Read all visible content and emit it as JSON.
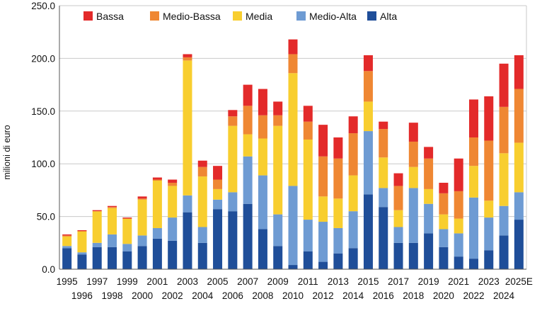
{
  "chart_data": {
    "type": "bar",
    "stacked": true,
    "title": "",
    "ylabel": "milioni di euro",
    "xlabel": "",
    "ylim": [
      0,
      250
    ],
    "yticks": [
      0,
      50,
      100,
      150,
      200,
      250
    ],
    "ytick_labels": [
      "0.0",
      "50.0",
      "100.0",
      "150.0",
      "200.0",
      "250.0"
    ],
    "grid": true,
    "legend_position": "top-left",
    "categories": [
      "1995",
      "1996",
      "1997",
      "1998",
      "1999",
      "2000",
      "2001",
      "2002",
      "2003",
      "2004",
      "2005",
      "2006",
      "2007",
      "2008",
      "2009",
      "2010",
      "2011",
      "2012",
      "2013",
      "2014",
      "2015",
      "2016",
      "2017",
      "2018",
      "2019",
      "2020",
      "2021",
      "2022",
      "2023",
      "2024",
      "2025E"
    ],
    "series": [
      {
        "name": "Alta",
        "color": "#1f4e99",
        "values": [
          20,
          14,
          21,
          21,
          17,
          22,
          29,
          27,
          54,
          25,
          57,
          55,
          62,
          38,
          22,
          4,
          17,
          7,
          15,
          20,
          71,
          59,
          25,
          25,
          34,
          21,
          12,
          10,
          18,
          32,
          47
        ]
      },
      {
        "name": "Medio-Alta",
        "color": "#6e9bd3",
        "values": [
          2,
          2,
          4,
          12,
          7,
          10,
          10,
          22,
          16,
          15,
          9,
          18,
          45,
          51,
          30,
          75,
          30,
          38,
          24,
          35,
          60,
          18,
          15,
          52,
          28,
          17,
          22,
          58,
          31,
          28,
          26
        ]
      },
      {
        "name": "Media",
        "color": "#f8ce2f",
        "values": [
          9,
          20,
          30,
          25,
          24,
          34,
          45,
          30,
          128,
          48,
          10,
          63,
          21,
          35,
          84,
          107,
          76,
          24,
          28,
          34,
          28,
          29,
          16,
          20,
          14,
          14,
          14,
          30,
          16,
          50,
          47
        ]
      },
      {
        "name": "Medio-Bassa",
        "color": "#ef8733",
        "values": [
          1,
          0,
          0,
          1,
          0,
          1,
          1,
          3,
          3,
          9,
          9,
          9,
          27,
          22,
          10,
          18,
          17,
          38,
          38,
          40,
          29,
          27,
          23,
          24,
          29,
          20,
          26,
          27,
          57,
          44,
          51
        ]
      },
      {
        "name": "Bassa",
        "color": "#e32a2a",
        "values": [
          1,
          1,
          1,
          1,
          1,
          2,
          2,
          3,
          3,
          6,
          13,
          6,
          20,
          25,
          13,
          14,
          15,
          30,
          20,
          16,
          15,
          7,
          12,
          18,
          11,
          10,
          31,
          36,
          42,
          41,
          32
        ]
      }
    ],
    "legend_order": [
      "Bassa",
      "Medio-Bassa",
      "Media",
      "Medio-Alta",
      "Alta"
    ]
  }
}
